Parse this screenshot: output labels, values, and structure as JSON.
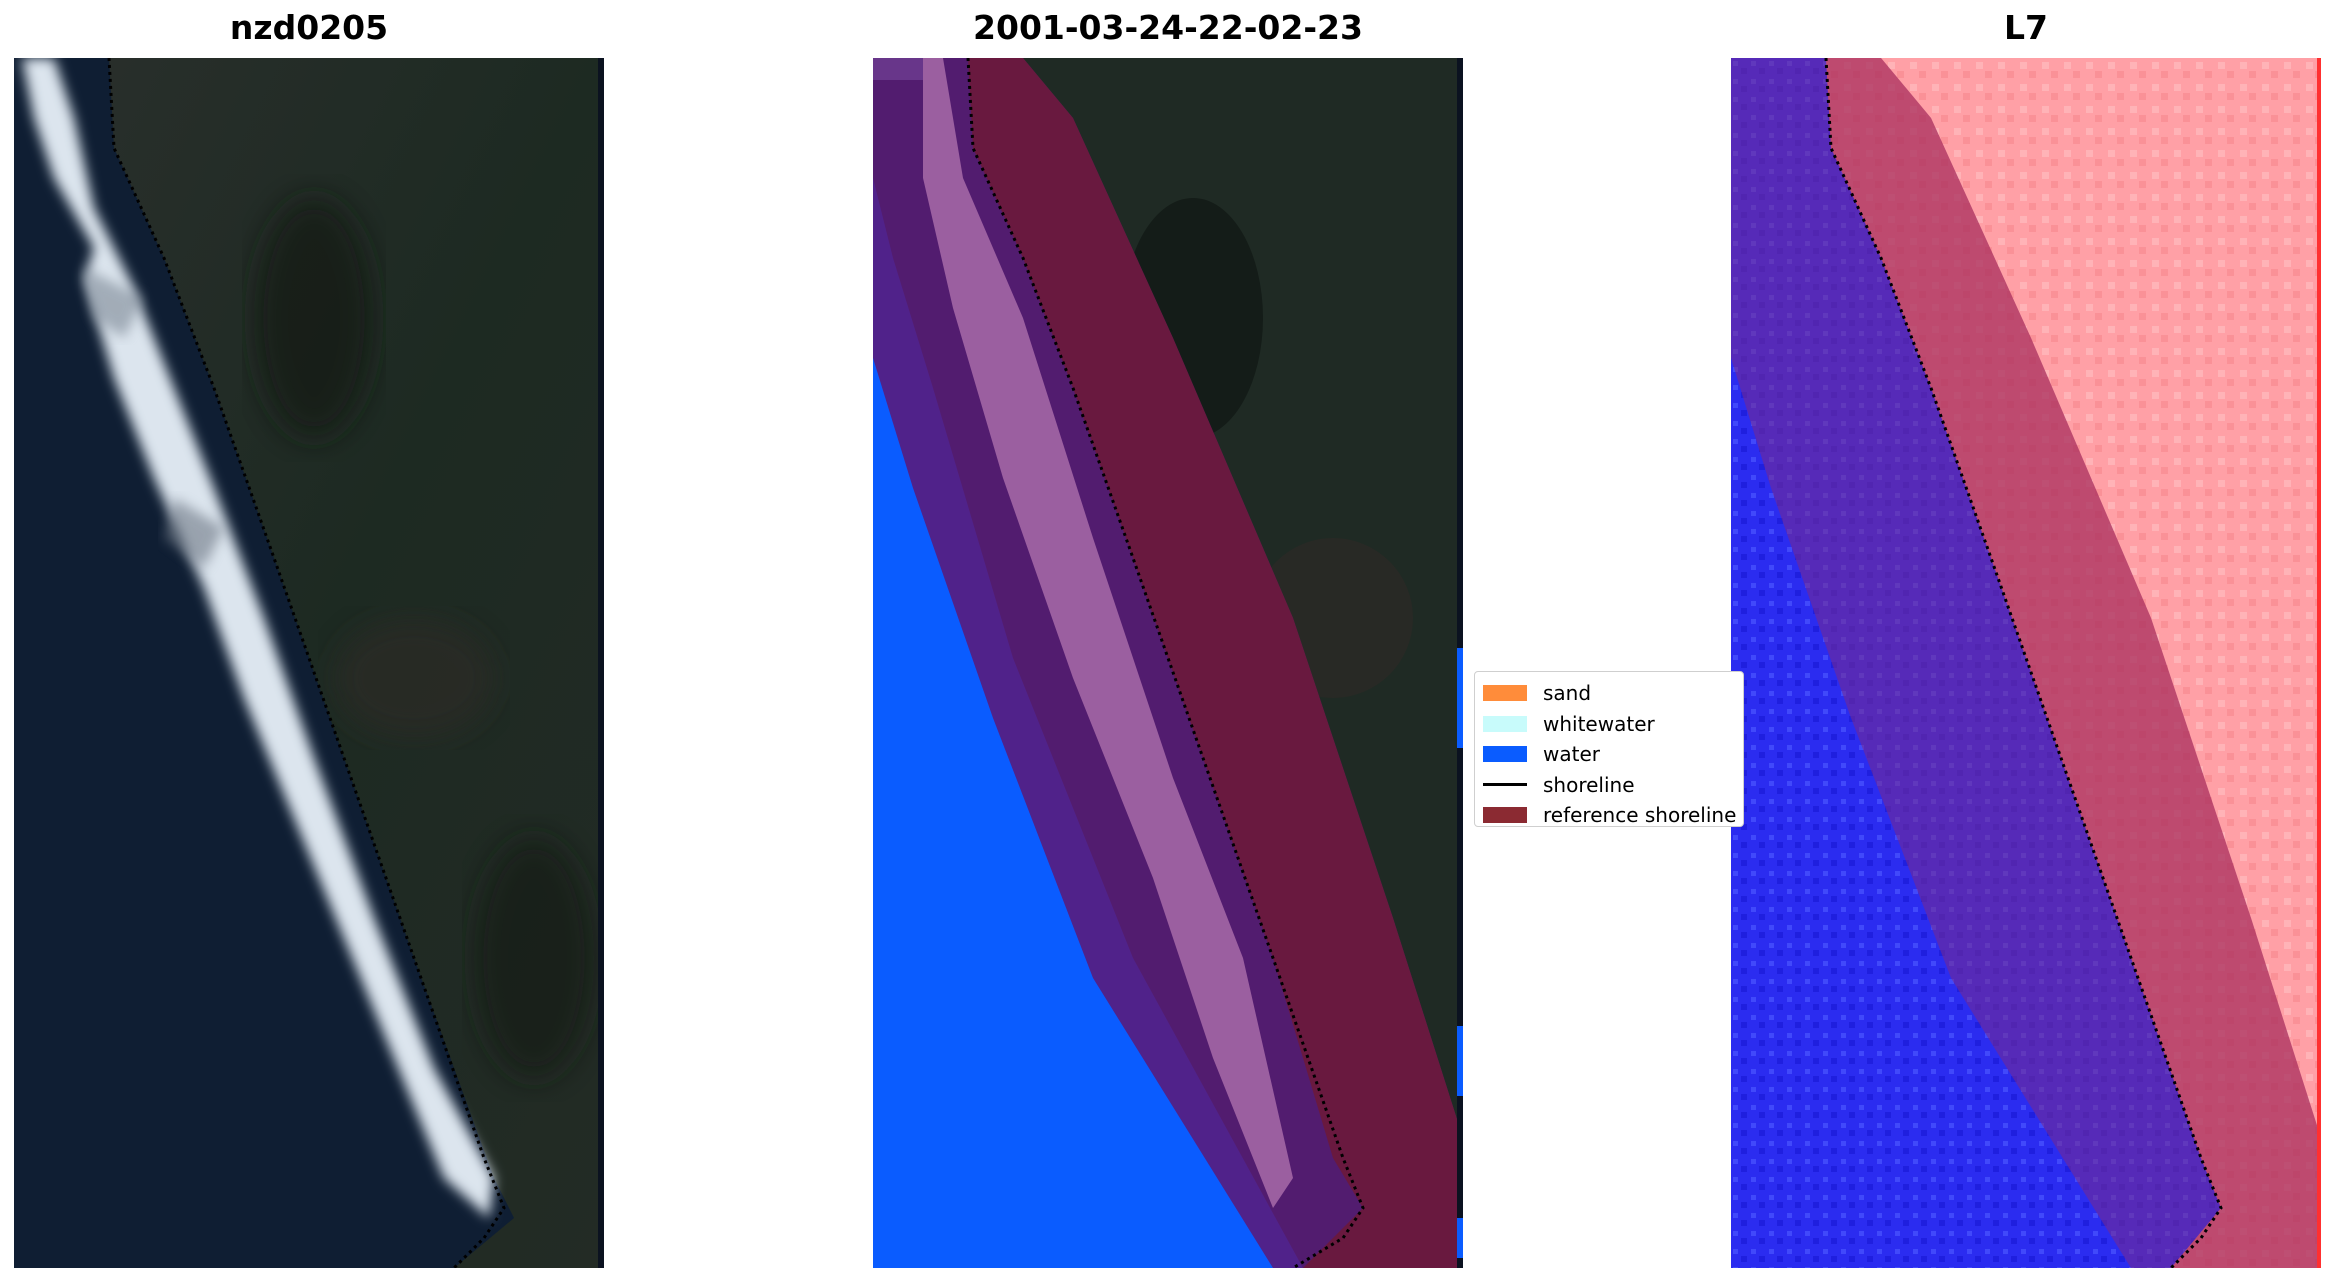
{
  "panels": [
    {
      "title": "nzd0205"
    },
    {
      "title": "2001-03-24-22-02-23"
    },
    {
      "title": "L7"
    }
  ],
  "legend": {
    "items": [
      {
        "label": "sand",
        "kind": "patch",
        "color": "#ff8c3a"
      },
      {
        "label": "whitewater",
        "kind": "patch",
        "color": "#c8fbfb"
      },
      {
        "label": "water",
        "kind": "patch",
        "color": "#0a5cff"
      },
      {
        "label": "shoreline",
        "kind": "line",
        "color": "#000000"
      },
      {
        "label": "reference shoreline",
        "kind": "patch",
        "color": "#8b2a32"
      }
    ]
  },
  "colors": {
    "ocean_rgb": "#0f1e33",
    "land_rgb": "#1f2a24",
    "surf": "#dfe8f0",
    "class_water": "#0a5cff",
    "class_mixed": "#9b5fa0",
    "buffer": "#6b1a3a",
    "ndwi_water": "#2b2cf0",
    "ndwi_land": "#ff9aa0"
  }
}
